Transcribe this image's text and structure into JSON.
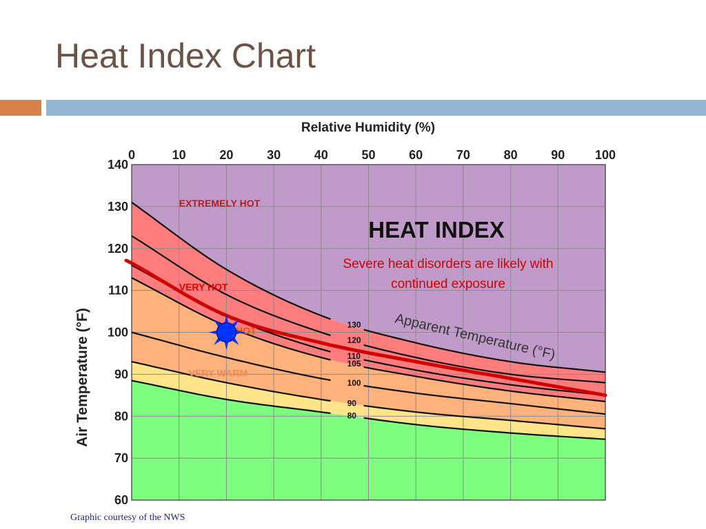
{
  "slide": {
    "title": "Heat Index Chart",
    "credit": "Graphic courtesy of the NWS",
    "accent_colors": {
      "orange": "#d9814a",
      "blue": "#92b6d3"
    }
  },
  "chart_data": {
    "type": "area",
    "title": "HEAT INDEX",
    "xlabel": "Relative Humidity (%)",
    "ylabel": "Air Temperature (°F)",
    "xlim": [
      0,
      100
    ],
    "ylim": [
      60,
      140
    ],
    "x_ticks": [
      0,
      10,
      20,
      30,
      40,
      50,
      60,
      70,
      80,
      90,
      100
    ],
    "y_ticks": [
      60,
      70,
      80,
      90,
      100,
      110,
      120,
      130,
      140
    ],
    "grid": true,
    "curve_axis_label": "Apparent Temperature (°F)",
    "warning_text_line1": "Severe heat disorders are likely with",
    "warning_text_line2": "continued exposure",
    "zones": [
      {
        "label": "EXTREMELY HOT",
        "color": "#c09ac8",
        "label_color": "#b01e1e"
      },
      {
        "label": "VERY HOT",
        "color": "#ff7d7d",
        "label_color": "#e00000"
      },
      {
        "label": "HOT",
        "color": "#ffb27c",
        "label_color": "#e05a00"
      },
      {
        "label": "VERY WARM",
        "color": "#ffe48a",
        "label_color": "#ee8a55"
      },
      {
        "label": "",
        "color": "#7fff7f",
        "label_color": ""
      }
    ],
    "series": [
      {
        "name": "130",
        "x": [
          0,
          20,
          40,
          60,
          80,
          100
        ],
        "y": [
          131,
          115,
          104,
          97.5,
          93,
          90.5
        ]
      },
      {
        "name": "120",
        "x": [
          0,
          20,
          40,
          60,
          80,
          100
        ],
        "y": [
          123,
          109,
          100,
          94,
          90,
          88
        ]
      },
      {
        "name": "110",
        "x": [
          0,
          20,
          40,
          60,
          80,
          100
        ],
        "y": [
          116,
          104,
          96,
          91,
          87.5,
          85
        ]
      },
      {
        "name": "105",
        "x": [
          0,
          20,
          40,
          60,
          80,
          100
        ],
        "y": [
          113,
          101.5,
          94,
          89.5,
          86,
          83.5
        ]
      },
      {
        "name": "100",
        "x": [
          0,
          20,
          40,
          60,
          80,
          100
        ],
        "y": [
          100,
          94,
          89,
          85.5,
          83,
          80.5
        ]
      },
      {
        "name": "90",
        "x": [
          0,
          20,
          40,
          60,
          80,
          100
        ],
        "y": [
          93,
          88,
          84,
          81,
          79,
          77
        ]
      },
      {
        "name": "80",
        "x": [
          0,
          20,
          40,
          60,
          80,
          100
        ],
        "y": [
          88.5,
          84,
          81,
          78,
          76,
          74.5
        ]
      }
    ],
    "danger_line": {
      "x": [
        0,
        20,
        40,
        60,
        80,
        100
      ],
      "y": [
        116.5,
        104,
        97.5,
        93,
        89,
        85
      ],
      "color": "#d10000"
    },
    "sun_marker": {
      "x": 20,
      "y": 100,
      "color": "#0033ff"
    }
  }
}
